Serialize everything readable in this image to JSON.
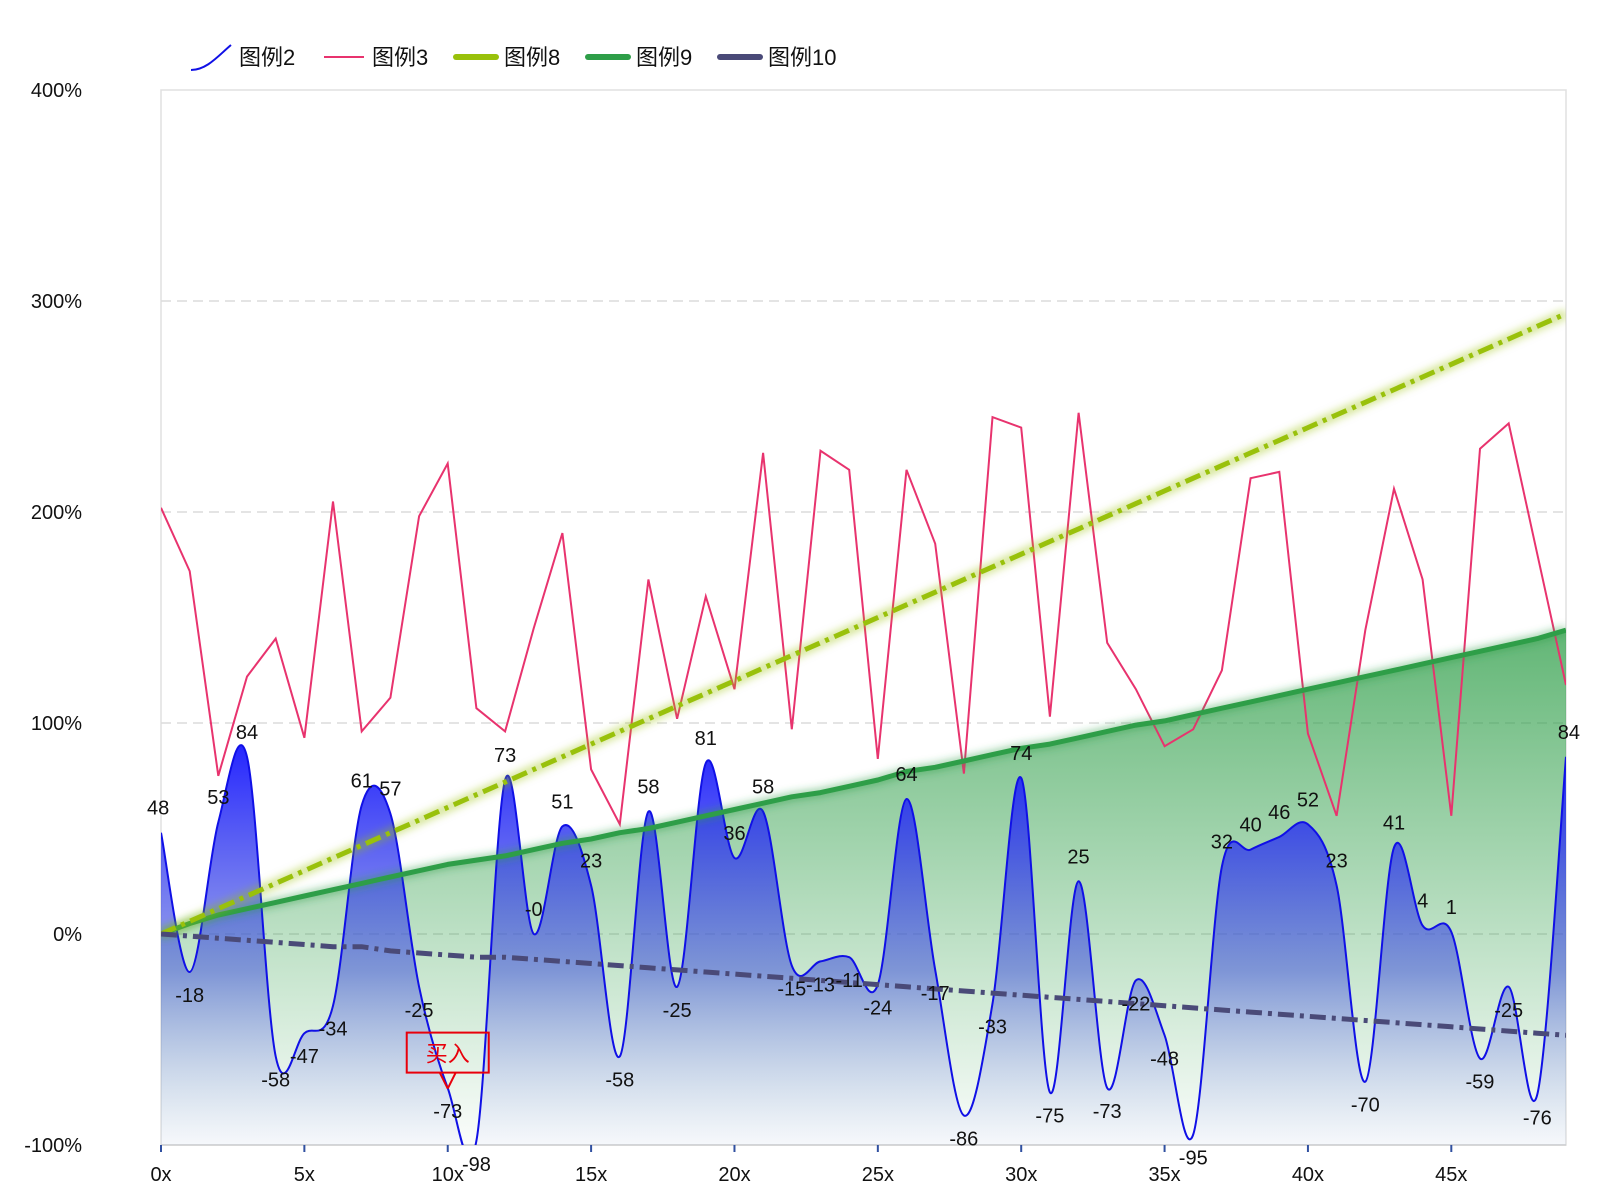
{
  "chart_data": {
    "type": "line",
    "x": [
      0,
      1,
      2,
      3,
      4,
      5,
      6,
      7,
      8,
      9,
      10,
      11,
      12,
      13,
      14,
      15,
      16,
      17,
      18,
      19,
      20,
      21,
      22,
      23,
      24,
      25,
      26,
      27,
      28,
      29,
      30,
      31,
      32,
      33,
      34,
      35,
      36,
      37,
      38,
      39,
      40,
      41,
      42,
      43,
      44,
      45,
      46,
      47,
      48,
      49
    ],
    "x_ticks": [
      0,
      5,
      10,
      15,
      20,
      25,
      30,
      35,
      40,
      45
    ],
    "x_tick_suffix": "x",
    "ylim": [
      -100,
      400
    ],
    "y_ticks": [
      -100,
      0,
      100,
      200,
      300,
      400
    ],
    "y_tick_suffix": "%",
    "grid": "horizontal-dashed",
    "legend": "top-left",
    "series": [
      {
        "name": "图例2",
        "style": "smooth-area",
        "color": "#1010e6",
        "values": [
          48,
          -18,
          53,
          84,
          -58,
          -47,
          -34,
          61,
          57,
          -25,
          -73,
          -98,
          73,
          0,
          51,
          23,
          -58,
          58,
          -25,
          81,
          36,
          58,
          -15,
          -13,
          -11,
          -24,
          64,
          -17,
          -86,
          -33,
          74,
          -75,
          25,
          -73,
          -22,
          -48,
          -95,
          32,
          40,
          46,
          52,
          23,
          -70,
          41,
          4,
          1,
          -59,
          -25,
          -76,
          84
        ],
        "labels": [
          "48",
          "-18",
          "53",
          "84",
          "-58",
          "-47",
          "-34",
          "61",
          "57",
          "-25",
          "-73",
          "-98",
          "73",
          "-0",
          "51",
          "23",
          "-58",
          "58",
          "-25",
          "81",
          "36",
          "58",
          "-15",
          "-13",
          "-11",
          "-24",
          "64",
          "-17",
          "-86",
          "-33",
          "74",
          "-75",
          "25",
          "-73",
          "-22",
          "-48",
          "-95",
          "32",
          "40",
          "46",
          "52",
          "23",
          "-70",
          "41",
          "4",
          "1",
          "-59",
          "-25",
          "-76",
          "84"
        ]
      },
      {
        "name": "图例3",
        "style": "line",
        "color": "#e8336e",
        "values": [
          202,
          172,
          75,
          122,
          140,
          93,
          205,
          96,
          112,
          198,
          223,
          107,
          96,
          145,
          190,
          78,
          52,
          168,
          102,
          160,
          116,
          228,
          97,
          229,
          220,
          83,
          220,
          185,
          76,
          245,
          240,
          103,
          247,
          138,
          116,
          89,
          97,
          125,
          216,
          219,
          95,
          56,
          144,
          211,
          168,
          56,
          230,
          242,
          180,
          118
        ]
      },
      {
        "name": "图例8",
        "style": "dash-dot-glow",
        "color": "#99c10b",
        "values": [
          0,
          6,
          12,
          18,
          24,
          30,
          36,
          42,
          48,
          54,
          60,
          66,
          72,
          78,
          84,
          90,
          96,
          102,
          108,
          114,
          120,
          126,
          132,
          138,
          144,
          150,
          156,
          162,
          168,
          174,
          180,
          186,
          192,
          198,
          204,
          210,
          216,
          222,
          228,
          234,
          240,
          246,
          252,
          258,
          264,
          270,
          276,
          282,
          288,
          294
        ]
      },
      {
        "name": "图例9",
        "style": "thick-area",
        "color": "#2e9e48",
        "values": [
          0,
          5,
          9,
          12,
          15,
          18,
          21,
          24,
          27,
          30,
          33,
          35,
          37,
          40,
          43,
          45,
          48,
          50,
          53,
          56,
          59,
          62,
          65,
          67,
          70,
          73,
          77,
          79,
          82,
          85,
          88,
          90,
          93,
          96,
          99,
          101,
          104,
          107,
          110,
          113,
          116,
          119,
          122,
          125,
          128,
          131,
          134,
          137,
          140,
          144
        ]
      },
      {
        "name": "图例10",
        "style": "thick-dash-dot",
        "color": "#4a4a78",
        "values": [
          0,
          -1,
          -2,
          -3,
          -4,
          -5,
          -6,
          -6,
          -8,
          -9,
          -10,
          -11,
          -11,
          -12,
          -13,
          -14,
          -15,
          -16,
          -17,
          -18,
          -19,
          -20,
          -21,
          -22,
          -23,
          -24,
          -25,
          -26,
          -27,
          -28,
          -29,
          -30,
          -31,
          -32,
          -33,
          -34,
          -35,
          -36,
          -37,
          -38,
          -39,
          -40,
          -41,
          -42,
          -43,
          -44,
          -45,
          -46,
          -47,
          -48
        ]
      }
    ],
    "annotations": [
      {
        "text": "买入",
        "x": 10,
        "y": -60
      }
    ]
  }
}
